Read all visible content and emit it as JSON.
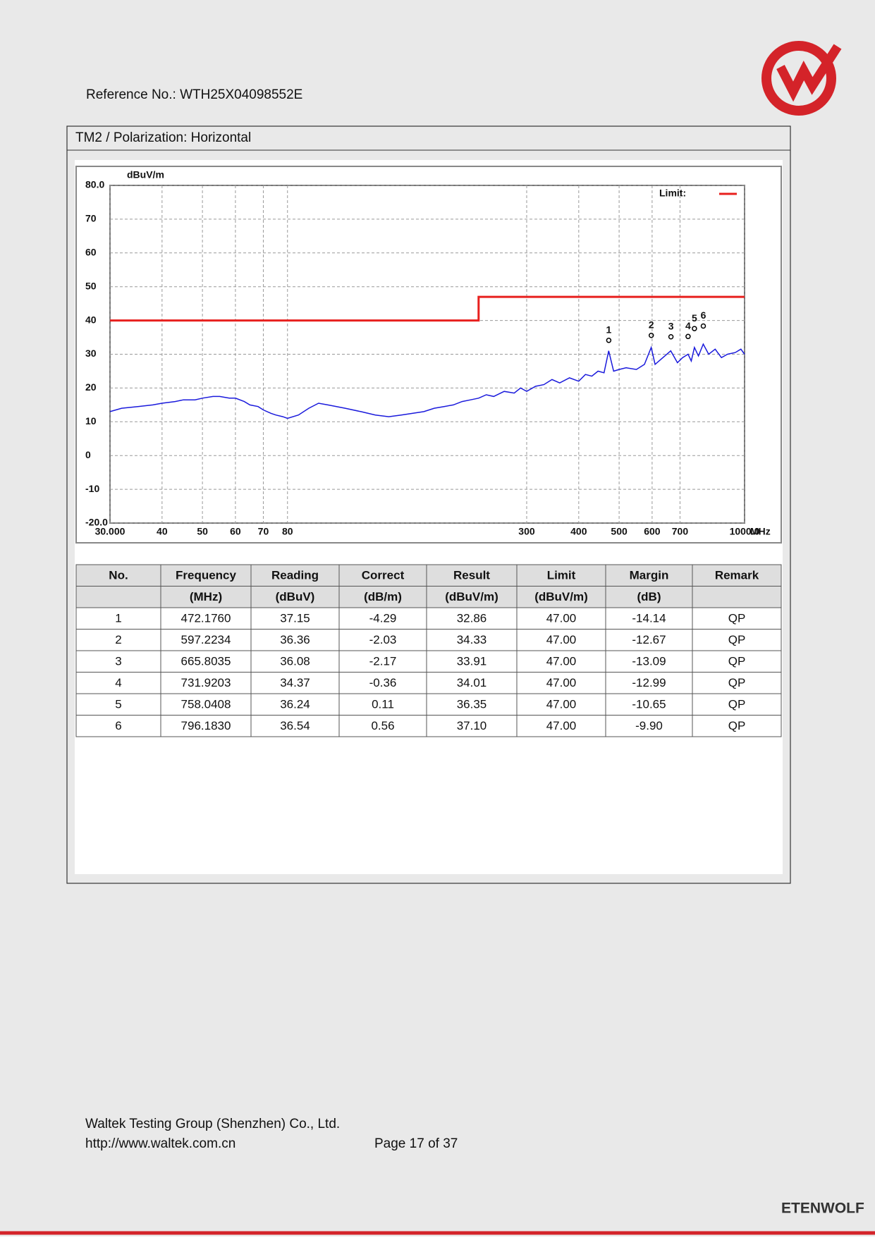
{
  "header": {
    "reference": "Reference No.: WTH25X04098552E",
    "logo_text": "ETENWOLF"
  },
  "section_title": "TM2 / Polarization: Horizontal",
  "chart_data": {
    "type": "line",
    "y_unit": "dBuV/m",
    "x_unit": "MHz",
    "x_scale": "log",
    "grid": true,
    "legend_position": "upper right",
    "xlim": [
      30,
      1000
    ],
    "ylim": [
      -20,
      80
    ],
    "xticks": [
      {
        "value": 30,
        "label": "30.000"
      },
      40,
      50,
      60,
      70,
      80,
      300,
      400,
      500,
      600,
      700,
      {
        "value": 1000,
        "label": "1000.0"
      }
    ],
    "yticks": [
      {
        "value": -20,
        "label": "-20.0"
      },
      -10,
      0,
      10,
      20,
      30,
      40,
      50,
      60,
      70,
      {
        "value": 80,
        "label": "80.0"
      }
    ],
    "series": [
      {
        "name": "Limit:",
        "color": "#e8201e",
        "x": [
          30,
          230,
          230,
          1000
        ],
        "values": [
          40,
          40,
          47,
          47
        ]
      },
      {
        "color": "#1a1adc",
        "x": [
          30,
          32,
          35,
          38,
          40,
          43,
          45,
          48,
          50,
          53,
          55,
          58,
          60,
          63,
          65,
          68,
          70,
          73,
          75,
          78,
          80,
          85,
          90,
          95,
          100,
          110,
          120,
          130,
          140,
          150,
          160,
          170,
          180,
          190,
          200,
          210,
          220,
          230,
          240,
          250,
          265,
          280,
          290,
          300,
          315,
          330,
          345,
          360,
          380,
          400,
          415,
          430,
          445,
          460,
          472,
          485,
          500,
          520,
          550,
          575,
          597,
          610,
          630,
          665,
          690,
          710,
          732,
          745,
          758,
          775,
          796,
          820,
          850,
          880,
          910,
          950,
          980,
          1000
        ],
        "values": [
          13,
          14,
          14.5,
          15,
          15.5,
          16,
          16.5,
          16.5,
          17,
          17.5,
          17.5,
          17,
          17,
          16,
          15,
          14.5,
          13.5,
          12.5,
          12,
          11.5,
          11,
          12,
          14,
          15.5,
          15,
          14,
          13,
          12,
          11.5,
          12,
          12.5,
          13,
          14,
          14.5,
          15,
          16,
          16.5,
          17,
          18,
          17.5,
          19,
          18.5,
          20,
          19,
          20.5,
          21,
          22.5,
          21.5,
          23,
          22,
          24,
          23.5,
          25,
          24.5,
          31,
          25,
          25.5,
          26,
          25.5,
          27,
          32,
          27,
          28.5,
          31,
          27.5,
          29,
          30,
          28,
          32,
          29.5,
          33,
          30,
          31.5,
          29,
          30,
          30.5,
          31.5,
          30
        ]
      }
    ]
  },
  "table": {
    "header": [
      "No.",
      "Frequency",
      "Reading",
      "Correct",
      "Result",
      "Limit",
      "Margin",
      "Remark"
    ],
    "units": [
      null,
      "(MHz)",
      "(dBuV)",
      "(dB/m)",
      "(dBuV/m)",
      "(dBuV/m)",
      "(dB)",
      null
    ],
    "rows": [
      [
        "1",
        "472.1760",
        "37.15",
        "-4.29",
        "32.86",
        "47.00",
        "-14.14",
        "QP"
      ],
      [
        "2",
        "597.2234",
        "36.36",
        "-2.03",
        "34.33",
        "47.00",
        "-12.67",
        "QP"
      ],
      [
        "3",
        "665.8035",
        "36.08",
        "-2.17",
        "33.91",
        "47.00",
        "-13.09",
        "QP"
      ],
      [
        "4",
        "731.9203",
        "34.37",
        "-0.36",
        "34.01",
        "47.00",
        "-12.99",
        "QP"
      ],
      [
        "5",
        "758.0408",
        "36.24",
        "0.11",
        "36.35",
        "47.00",
        "-10.65",
        "QP"
      ],
      [
        "6",
        "796.1830",
        "36.54",
        "0.56",
        "37.10",
        "47.00",
        "-9.90",
        "QP"
      ]
    ]
  },
  "footer": {
    "company": "Waltek Testing Group (Shenzhen) Co., Ltd.",
    "url": "http://www.waltek.com.cn",
    "page": "Page 17 of 37"
  }
}
